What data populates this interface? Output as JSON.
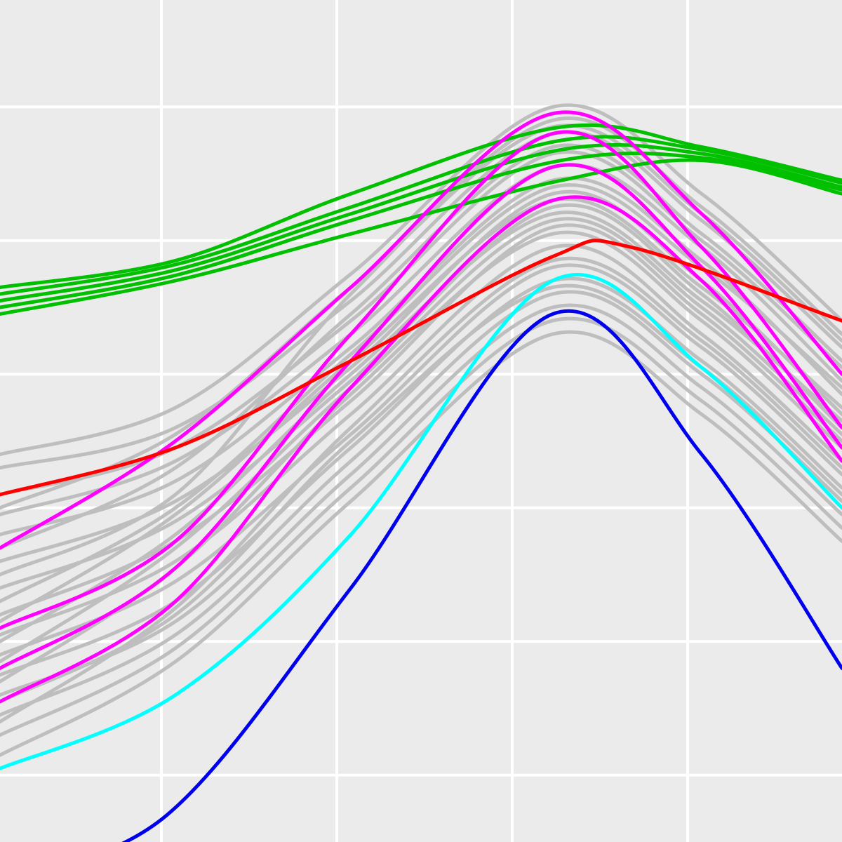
{
  "chart_data": {
    "type": "line",
    "title": "",
    "xlabel": "",
    "ylabel": "",
    "xlim": [
      0,
      4.8
    ],
    "ylim": [
      -1.5,
      4.8
    ],
    "x_gridlines": [
      0.92,
      1.92,
      2.92,
      3.92
    ],
    "y_gridlines": [
      -1.0,
      0.0,
      1.0,
      2.0,
      3.0,
      4.0
    ],
    "grid": true,
    "background_color": "#ebebeb",
    "grid_color": "#ffffff",
    "series": [
      {
        "color": "#bebebe",
        "x": [
          0,
          1,
          2,
          3.15,
          4,
          4.8
        ],
        "y": [
          1.4,
          1.75,
          2.75,
          4.0,
          3.35,
          2.4
        ]
      },
      {
        "color": "#bebebe",
        "x": [
          0,
          1,
          2,
          3.15,
          4,
          4.8
        ],
        "y": [
          1.3,
          1.6,
          2.55,
          3.8,
          3.15,
          2.2
        ]
      },
      {
        "color": "#bebebe",
        "x": [
          0,
          1,
          2,
          3.15,
          4,
          4.8
        ],
        "y": [
          1.1,
          1.45,
          2.4,
          3.65,
          3.0,
          2.05
        ]
      },
      {
        "color": "#bebebe",
        "x": [
          0,
          1,
          2,
          3.15,
          4,
          4.8
        ],
        "y": [
          0.95,
          1.35,
          2.3,
          3.55,
          2.95,
          1.95
        ]
      },
      {
        "color": "#bebebe",
        "x": [
          0,
          1,
          2,
          3.15,
          4,
          4.8
        ],
        "y": [
          0.8,
          1.2,
          2.2,
          3.45,
          2.85,
          1.85
        ]
      },
      {
        "color": "#bebebe",
        "x": [
          0,
          1,
          2,
          3.15,
          4,
          4.8
        ],
        "y": [
          0.6,
          1.05,
          2.05,
          3.35,
          2.7,
          1.7
        ]
      },
      {
        "color": "#bebebe",
        "x": [
          0,
          1,
          2,
          3.15,
          4,
          4.8
        ],
        "y": [
          0.4,
          0.9,
          1.95,
          3.25,
          2.6,
          1.6
        ]
      },
      {
        "color": "#bebebe",
        "x": [
          0,
          1,
          2,
          3.15,
          4,
          4.8
        ],
        "y": [
          0.2,
          0.75,
          1.8,
          3.1,
          2.45,
          1.5
        ]
      },
      {
        "color": "#bebebe",
        "x": [
          0,
          1,
          2,
          3.15,
          4,
          4.8
        ],
        "y": [
          0.05,
          0.6,
          1.7,
          2.95,
          2.3,
          1.35
        ]
      },
      {
        "color": "#bebebe",
        "x": [
          0,
          1,
          2,
          3.15,
          4,
          4.8
        ],
        "y": [
          -0.1,
          0.45,
          1.55,
          2.8,
          2.2,
          1.25
        ]
      },
      {
        "color": "#bebebe",
        "x": [
          0,
          1,
          2,
          3.15,
          4,
          4.8
        ],
        "y": [
          -0.25,
          0.3,
          1.45,
          2.7,
          2.1,
          1.15
        ]
      },
      {
        "color": "#bebebe",
        "x": [
          0,
          1,
          2,
          3.15,
          4,
          4.8
        ],
        "y": [
          -0.4,
          0.15,
          1.35,
          2.6,
          2.0,
          1.05
        ]
      },
      {
        "color": "#bebebe",
        "x": [
          0,
          1,
          2,
          3.15,
          4,
          4.8
        ],
        "y": [
          -0.55,
          0.05,
          1.25,
          2.5,
          1.9,
          0.95
        ]
      },
      {
        "color": "#bebebe",
        "x": [
          0,
          1,
          2,
          3.15,
          4,
          4.8
        ],
        "y": [
          -0.7,
          -0.05,
          1.15,
          2.4,
          1.8,
          0.85
        ]
      },
      {
        "color": "#bebebe",
        "x": [
          0,
          1,
          2,
          3.15,
          4,
          4.8
        ],
        "y": [
          -0.85,
          -0.15,
          1.05,
          2.3,
          1.7,
          0.75
        ]
      },
      {
        "color": "#bebebe",
        "x": [
          0,
          1,
          2,
          3.15,
          4,
          4.8
        ],
        "y": [
          0.7,
          1.3,
          2.45,
          3.7,
          3.05,
          2.1
        ]
      },
      {
        "color": "#bebebe",
        "x": [
          0,
          1,
          2,
          3.15,
          4,
          4.8
        ],
        "y": [
          0.3,
          1.0,
          2.15,
          3.4,
          2.8,
          1.9
        ]
      },
      {
        "color": "#bebebe",
        "x": [
          0,
          1,
          2,
          3.15,
          4,
          4.8
        ],
        "y": [
          0.0,
          0.8,
          2.0,
          3.2,
          2.55,
          1.65
        ]
      },
      {
        "color": "#bebebe",
        "x": [
          0,
          1,
          2,
          3.15,
          4,
          4.8
        ],
        "y": [
          -0.3,
          0.55,
          1.85,
          3.05,
          2.4,
          1.45
        ]
      },
      {
        "color": "#bebebe",
        "x": [
          0,
          1,
          2,
          3.15,
          4,
          4.8
        ],
        "y": [
          -0.6,
          0.25,
          1.6,
          2.85,
          2.25,
          1.3
        ]
      },
      {
        "color": "#bebebe",
        "x": [
          0,
          1,
          2,
          3.15,
          4,
          4.8
        ],
        "y": [
          0.5,
          1.1,
          2.6,
          3.9,
          3.25,
          2.3
        ]
      },
      {
        "color": "#bebebe",
        "x": [
          0,
          1,
          2,
          3.15,
          4,
          4.8
        ],
        "y": [
          -0.45,
          0.2,
          1.5,
          2.65,
          2.05,
          1.1
        ]
      },
      {
        "color": "#bebebe",
        "x": [
          0,
          1,
          2,
          3.15,
          4,
          4.8
        ],
        "y": [
          1.0,
          1.55,
          2.65,
          3.85,
          3.2,
          2.25
        ]
      },
      {
        "color": "#bebebe",
        "x": [
          0,
          1,
          2,
          3.15,
          4,
          4.8
        ],
        "y": [
          -0.15,
          0.7,
          1.9,
          3.15,
          2.5,
          1.55
        ]
      },
      {
        "color": "#bebebe",
        "x": [
          0,
          1,
          2,
          3.15,
          4,
          4.8
        ],
        "y": [
          0.15,
          0.95,
          2.1,
          3.3,
          2.65,
          1.75
        ]
      },
      {
        "color": "#00c000",
        "x": [
          0,
          1,
          2,
          3.2,
          4,
          4.8
        ],
        "y": [
          2.65,
          2.85,
          3.35,
          3.85,
          3.7,
          3.45
        ]
      },
      {
        "color": "#00c000",
        "x": [
          0,
          1,
          2,
          3.2,
          4,
          4.8
        ],
        "y": [
          2.6,
          2.82,
          3.25,
          3.75,
          3.68,
          3.43
        ]
      },
      {
        "color": "#00c000",
        "x": [
          0,
          1,
          2,
          3.2,
          4,
          4.8
        ],
        "y": [
          2.55,
          2.78,
          3.2,
          3.68,
          3.65,
          3.4
        ]
      },
      {
        "color": "#00c000",
        "x": [
          0,
          1,
          2,
          3.2,
          4,
          4.8
        ],
        "y": [
          2.5,
          2.74,
          3.15,
          3.6,
          3.62,
          3.38
        ]
      },
      {
        "color": "#00c000",
        "x": [
          0,
          1,
          2,
          3.2,
          4,
          4.8
        ],
        "y": [
          2.45,
          2.7,
          3.05,
          3.45,
          3.6,
          3.35
        ]
      },
      {
        "color": "#ff00ff",
        "x": [
          0,
          1,
          2,
          3.15,
          4,
          4.8
        ],
        "y": [
          0.7,
          1.5,
          2.65,
          3.95,
          3.2,
          2.0
        ]
      },
      {
        "color": "#ff00ff",
        "x": [
          0,
          1,
          2,
          3.15,
          4,
          4.8
        ],
        "y": [
          0.1,
          0.75,
          2.3,
          3.8,
          2.95,
          1.6
        ]
      },
      {
        "color": "#ff00ff",
        "x": [
          0,
          1,
          2,
          3.15,
          4,
          4.8
        ],
        "y": [
          -0.2,
          0.55,
          2.1,
          3.55,
          2.8,
          1.45
        ]
      },
      {
        "color": "#ff00ff",
        "x": [
          0,
          1,
          2,
          3.15,
          4,
          4.8
        ],
        "y": [
          -0.45,
          0.3,
          1.9,
          3.3,
          2.7,
          1.35
        ]
      },
      {
        "color": "#ff0000",
        "x": [
          0,
          1,
          2,
          3.15,
          3.6,
          4.8
        ],
        "y": [
          1.1,
          1.45,
          2.1,
          2.88,
          2.95,
          2.4
        ]
      },
      {
        "color": "#00ffff",
        "x": [
          0,
          1,
          2,
          3.15,
          4,
          4.8
        ],
        "y": [
          -0.95,
          -0.4,
          0.8,
          2.7,
          2.05,
          1.0
        ]
      },
      {
        "color": "#0000ee",
        "x": [
          0,
          0.95,
          2,
          3.15,
          4,
          4.8
        ],
        "y": [
          -1.8,
          -1.3,
          0.4,
          2.45,
          1.4,
          -0.2
        ]
      }
    ]
  }
}
